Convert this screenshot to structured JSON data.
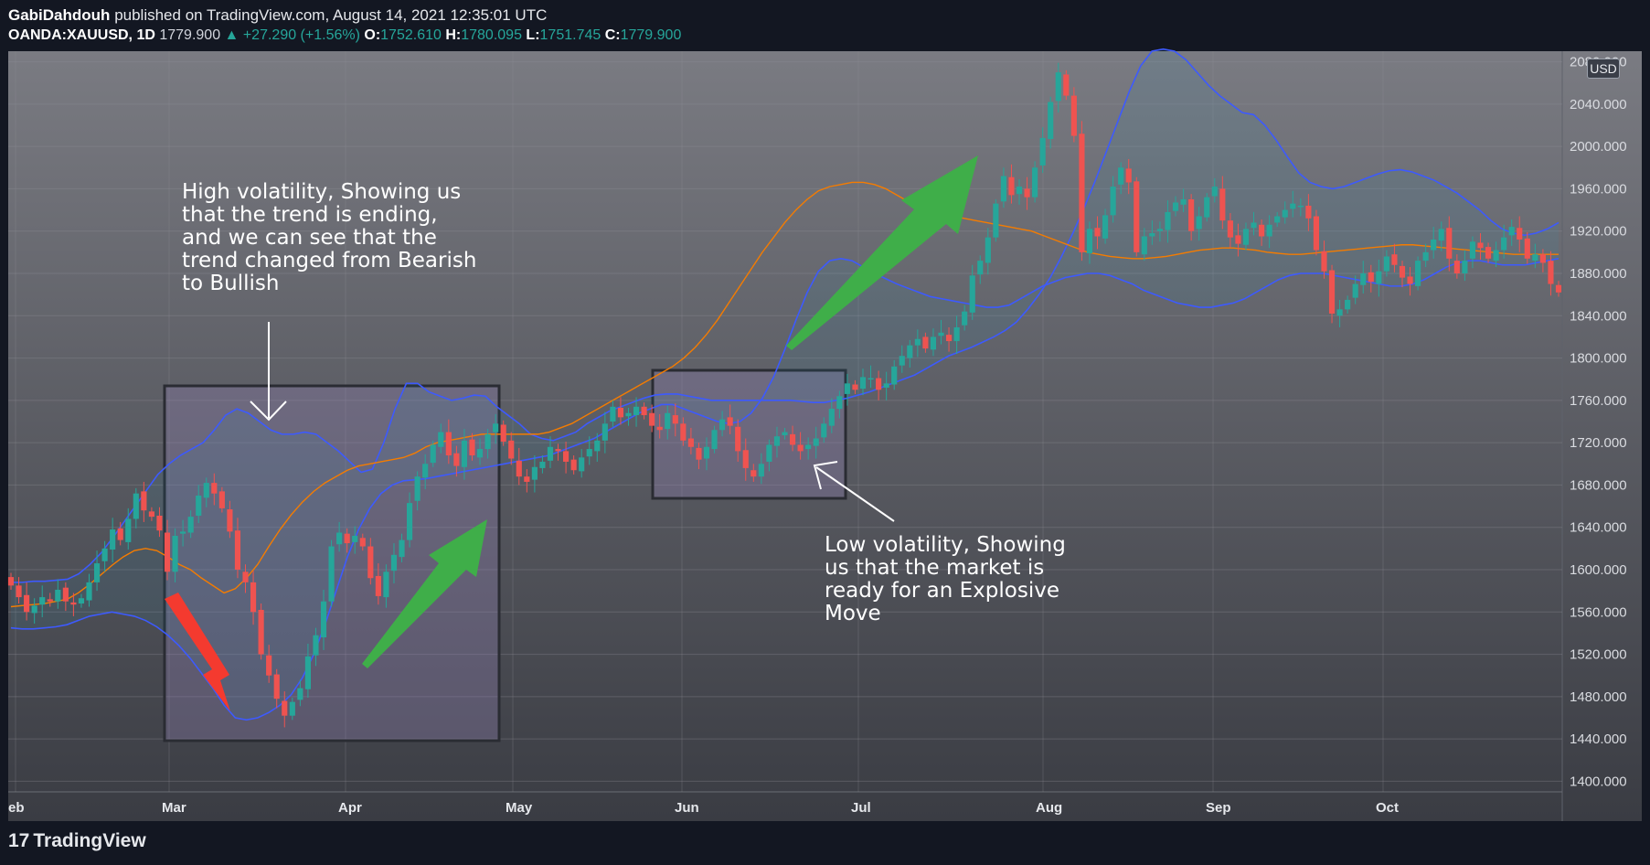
{
  "header": {
    "author": "GabiDahdouh",
    "published": "published on TradingView.com, August 14, 2021 12:35:01 UTC",
    "symbol": "OANDA:XAUUSD, 1D",
    "price": "1779.900",
    "change": "▲ +27.290 (+1.56%)",
    "open_label": "O:",
    "open": "1752.610",
    "high_label": "H:",
    "high": "1780.095",
    "low_label": "L:",
    "low": "1751.745",
    "close_label": "C:",
    "close": "1779.900"
  },
  "currency_badge": "USD",
  "footer": {
    "brand": "TradingView"
  },
  "annotations": {
    "high_volatility": "High volatility, Showing us\nthat the trend is ending,\nand we can see that the\ntrend changed from Bearish\nto Bullish",
    "low_volatility": "Low volatility, Showing\nus that the market is\nready for an Explosive\nMove"
  },
  "colors": {
    "up": "#26a69a",
    "down": "#ef5350",
    "band": "#3d5afe",
    "basis": "#f57c00",
    "green_arrow": "#3fae49",
    "red_arrow": "#f43a2f"
  },
  "chart_data": {
    "type": "candlestick",
    "indicator": "Bollinger Bands",
    "ylim": [
      1390,
      2090
    ],
    "y_ticks": [
      "2080.000",
      "2040.000",
      "2000.000",
      "1960.000",
      "1920.000",
      "1880.000",
      "1840.000",
      "1800.000",
      "1760.000",
      "1720.000",
      "1680.000",
      "1640.000",
      "1600.000",
      "1560.000",
      "1520.000",
      "1480.000",
      "1440.000",
      "1400.000"
    ],
    "x_ticks": [
      "eb",
      "Mar",
      "Apr",
      "May",
      "Jun",
      "Jul",
      "Aug",
      "Sep",
      "Oct"
    ],
    "closes": [
      1585,
      1574,
      1560,
      1566,
      1574,
      1570,
      1581,
      1570,
      1567,
      1573,
      1588,
      1606,
      1620,
      1638,
      1628,
      1648,
      1672,
      1656,
      1650,
      1637,
      1598,
      1632,
      1636,
      1650,
      1670,
      1682,
      1672,
      1658,
      1636,
      1600,
      1588,
      1560,
      1520,
      1500,
      1478,
      1462,
      1475,
      1488,
      1518,
      1538,
      1570,
      1622,
      1635,
      1625,
      1632,
      1622,
      1592,
      1575,
      1598,
      1614,
      1628,
      1663,
      1688,
      1700,
      1718,
      1730,
      1708,
      1698,
      1722,
      1708,
      1714,
      1728,
      1738,
      1721,
      1705,
      1688,
      1683,
      1697,
      1702,
      1716,
      1712,
      1702,
      1694,
      1706,
      1714,
      1722,
      1738,
      1754,
      1744,
      1748,
      1754,
      1746,
      1736,
      1732,
      1748,
      1738,
      1722,
      1716,
      1704,
      1716,
      1732,
      1742,
      1736,
      1712,
      1696,
      1688,
      1700,
      1718,
      1726,
      1730,
      1718,
      1712,
      1718,
      1724,
      1738,
      1752,
      1764,
      1776,
      1770,
      1782,
      1781,
      1770,
      1776,
      1792,
      1802,
      1812,
      1818,
      1809,
      1820,
      1824,
      1816,
      1829,
      1844,
      1878,
      1892,
      1914,
      1946,
      1972,
      1954,
      1962,
      1952,
      1980,
      2008,
      2042,
      2070,
      2048,
      2010,
      1900,
      1922,
      1915,
      1935,
      1962,
      1980,
      1966,
      1900,
      1915,
      1918,
      1922,
      1938,
      1947,
      1950,
      1920,
      1934,
      1952,
      1962,
      1930,
      1914,
      1908,
      1922,
      1928,
      1915,
      1926,
      1934,
      1940,
      1946,
      1944,
      1932,
      1902,
      1882,
      1842,
      1846,
      1855,
      1870,
      1880,
      1872,
      1882,
      1896,
      1888,
      1876,
      1870,
      1892,
      1900,
      1912,
      1922,
      1894,
      1880,
      1892,
      1910,
      1904,
      1894,
      1902,
      1914,
      1924,
      1912,
      1894,
      1898,
      1890,
      1870,
      1862
    ],
    "upper_band": [
      1588,
      1588,
      1589,
      1589,
      1590,
      1591,
      1596,
      1605,
      1616,
      1630,
      1645,
      1660,
      1675,
      1690,
      1700,
      1708,
      1714,
      1720,
      1732,
      1746,
      1752,
      1748,
      1740,
      1732,
      1728,
      1728,
      1730,
      1728,
      1720,
      1712,
      1702,
      1692,
      1695,
      1720,
      1752,
      1776,
      1776,
      1768,
      1764,
      1760,
      1762,
      1765,
      1764,
      1754,
      1746,
      1738,
      1728,
      1724,
      1722,
      1726,
      1730,
      1738,
      1744,
      1750,
      1754,
      1758,
      1762,
      1765,
      1766,
      1766,
      1764,
      1762,
      1760,
      1760,
      1760,
      1760,
      1760,
      1760,
      1760,
      1760,
      1759,
      1758,
      1758,
      1760,
      1762,
      1765,
      1768,
      1772,
      1776,
      1780,
      1784,
      1790,
      1796,
      1802,
      1806,
      1810,
      1815,
      1820,
      1826,
      1834,
      1846,
      1860,
      1876,
      1896,
      1918,
      1942,
      1968,
      1996,
      2024,
      2052,
      2076,
      2090,
      2092,
      2090,
      2082,
      2070,
      2058,
      2048,
      2040,
      2032,
      2030,
      2020,
      2006,
      1990,
      1975,
      1966,
      1962,
      1960,
      1962,
      1966,
      1970,
      1974,
      1977,
      1978,
      1976,
      1972,
      1968,
      1962,
      1956,
      1948,
      1940,
      1930,
      1922,
      1918,
      1916,
      1918,
      1922,
      1928
    ],
    "middle_band": [
      1565,
      1566,
      1567,
      1568,
      1570,
      1572,
      1578,
      1586,
      1595,
      1604,
      1612,
      1618,
      1620,
      1618,
      1612,
      1605,
      1600,
      1592,
      1585,
      1578,
      1582,
      1592,
      1605,
      1622,
      1638,
      1652,
      1664,
      1674,
      1682,
      1688,
      1694,
      1698,
      1700,
      1702,
      1704,
      1706,
      1710,
      1716,
      1720,
      1722,
      1724,
      1726,
      1728,
      1728,
      1728,
      1728,
      1728,
      1728,
      1730,
      1734,
      1738,
      1744,
      1750,
      1756,
      1762,
      1768,
      1774,
      1780,
      1786,
      1792,
      1800,
      1810,
      1822,
      1836,
      1852,
      1868,
      1884,
      1900,
      1914,
      1928,
      1940,
      1950,
      1958,
      1962,
      1964,
      1966,
      1966,
      1964,
      1960,
      1954,
      1948,
      1942,
      1938,
      1936,
      1934,
      1932,
      1930,
      1928,
      1926,
      1924,
      1922,
      1920,
      1916,
      1912,
      1908,
      1904,
      1900,
      1898,
      1896,
      1895,
      1894,
      1894,
      1895,
      1896,
      1898,
      1900,
      1902,
      1903,
      1904,
      1904,
      1903,
      1902,
      1900,
      1899,
      1898,
      1898,
      1899,
      1900,
      1901,
      1902,
      1903,
      1904,
      1905,
      1906,
      1907,
      1907,
      1906,
      1905,
      1904,
      1903,
      1902,
      1901,
      1900,
      1899,
      1898,
      1898,
      1898,
      1898,
      1898
    ],
    "lower_band": [
      1545,
      1544,
      1544,
      1545,
      1546,
      1548,
      1552,
      1556,
      1558,
      1560,
      1558,
      1556,
      1552,
      1546,
      1538,
      1528,
      1516,
      1502,
      1488,
      1472,
      1460,
      1458,
      1460,
      1465,
      1472,
      1482,
      1498,
      1520,
      1548,
      1580,
      1612,
      1638,
      1658,
      1672,
      1680,
      1684,
      1685,
      1686,
      1688,
      1690,
      1692,
      1694,
      1696,
      1698,
      1700,
      1702,
      1704,
      1706,
      1708,
      1712,
      1716,
      1720,
      1724,
      1730,
      1736,
      1742,
      1748,
      1752,
      1756,
      1756,
      1752,
      1748,
      1744,
      1740,
      1738,
      1740,
      1748,
      1762,
      1782,
      1808,
      1836,
      1862,
      1882,
      1892,
      1894,
      1892,
      1886,
      1880,
      1875,
      1870,
      1866,
      1862,
      1858,
      1856,
      1854,
      1852,
      1850,
      1848,
      1848,
      1850,
      1856,
      1862,
      1868,
      1872,
      1876,
      1878,
      1880,
      1880,
      1878,
      1874,
      1870,
      1864,
      1860,
      1856,
      1852,
      1850,
      1848,
      1848,
      1850,
      1852,
      1856,
      1862,
      1868,
      1874,
      1878,
      1880,
      1880,
      1880,
      1878,
      1876,
      1874,
      1872,
      1870,
      1868,
      1868,
      1870,
      1874,
      1880,
      1886,
      1890,
      1892,
      1892,
      1890,
      1888,
      1888,
      1888,
      1890,
      1892,
      1894
    ]
  }
}
